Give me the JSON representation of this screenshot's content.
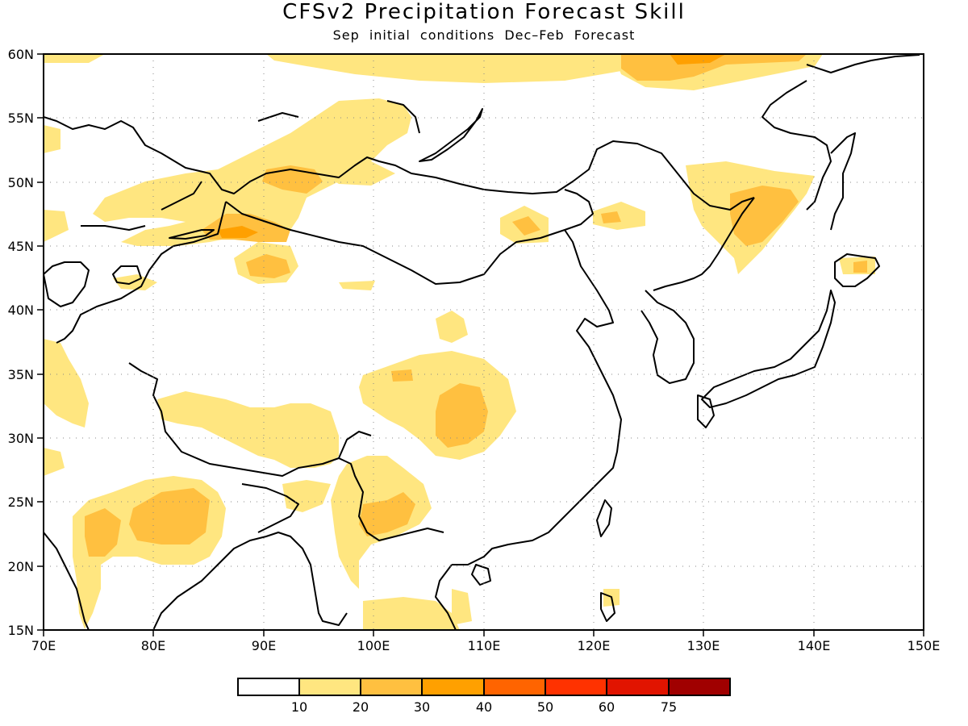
{
  "title": "CFSv2 Precipitation Forecast Skill",
  "subtitle": "Sep initial conditions  Dec–Feb Forecast",
  "map": {
    "lon_range": [
      70,
      150
    ],
    "lat_range": [
      15,
      60
    ],
    "lon_ticks": [
      "70E",
      "80E",
      "90E",
      "100E",
      "110E",
      "120E",
      "130E",
      "140E",
      "150E"
    ],
    "lat_ticks": [
      "60N",
      "55N",
      "50N",
      "45N",
      "40N",
      "35N",
      "30N",
      "25N",
      "20N",
      "15N"
    ],
    "gridlines": "dotted"
  },
  "legend": {
    "colors": [
      "#ffffff",
      "#ffe680",
      "#ffc040",
      "#ffa000",
      "#ff6400",
      "#ff3200",
      "#e11400",
      "#a00000"
    ],
    "labels": [
      "10",
      "20",
      "30",
      "40",
      "50",
      "60",
      "75"
    ]
  }
}
